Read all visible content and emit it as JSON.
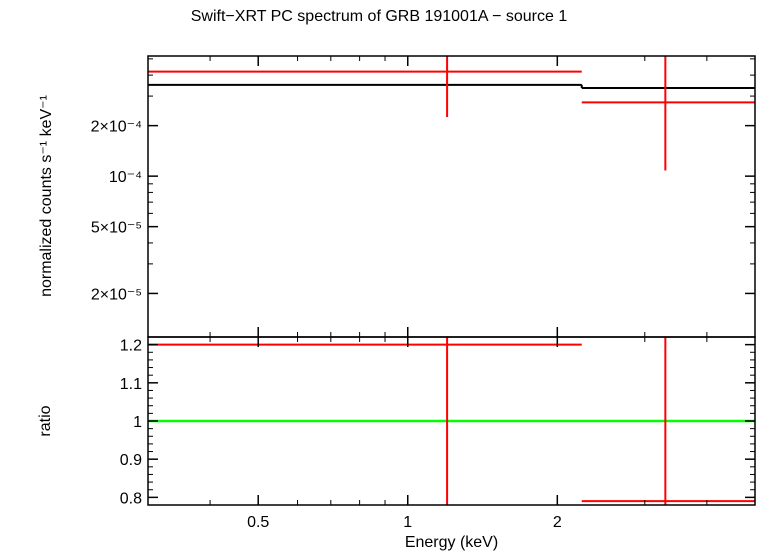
{
  "title": "Swift−XRT PC spectrum of GRB 191001A − source 1",
  "colors": {
    "data": "#ff0000",
    "model": "#000000",
    "ratio_ref": "#00ff00",
    "axes": "#000000"
  },
  "chart_data": [
    {
      "type": "scatter",
      "panel": "spectrum",
      "xlabel": "Energy (keV)",
      "ylabel": "normalized counts s⁻¹ keV⁻¹",
      "xscale": "log",
      "yscale": "log",
      "xlim": [
        0.3,
        5.0
      ],
      "ylim": [
        1.1e-05,
        0.00052
      ],
      "ytick_values": [
        2e-05,
        5e-05,
        0.0001,
        0.0002
      ],
      "ytick_labels": [
        "2×10⁻⁵",
        "5×10⁻⁵",
        "10⁻⁴",
        "2×10⁻⁴"
      ],
      "series": [
        {
          "type": "errorbar",
          "points": [
            {
              "x": 1.2,
              "xlo": 0.3,
              "xhi": 2.24,
              "y": 0.00042,
              "ylo": 0.000225,
              "yhi": 0.00052
            },
            {
              "x": 3.3,
              "xlo": 2.24,
              "xhi": 5.0,
              "y": 0.000275,
              "ylo": 0.000108,
              "yhi": 0.00052
            }
          ]
        },
        {
          "type": "step",
          "segments": [
            {
              "xlo": 0.3,
              "xhi": 2.24,
              "y": 0.00035
            },
            {
              "xlo": 2.24,
              "xhi": 5.0,
              "y": 0.000335
            }
          ]
        }
      ]
    },
    {
      "type": "scatter",
      "panel": "ratio",
      "xlabel": "Energy (keV)",
      "ylabel": "ratio",
      "xscale": "log",
      "xlim": [
        0.3,
        5.0
      ],
      "ylim": [
        0.78,
        1.22
      ],
      "ytick_values": [
        0.8,
        0.9,
        1.0,
        1.1,
        1.2
      ],
      "ytick_labels": [
        "0.8",
        "0.9",
        "1",
        "1.1",
        "1.2"
      ],
      "xtick_values": [
        0.5,
        1,
        2
      ],
      "xtick_labels": [
        "0.5",
        "1",
        "2"
      ],
      "reference_line": 1.0,
      "series": [
        {
          "type": "errorbar",
          "points": [
            {
              "x": 1.2,
              "xlo": 0.3,
              "xhi": 2.24,
              "y": 1.2,
              "ylo": 0.78,
              "yhi": 1.22
            },
            {
              "x": 3.3,
              "xlo": 2.24,
              "xhi": 5.0,
              "y": 0.79,
              "ylo": 0.78,
              "yhi": 1.22
            }
          ]
        }
      ]
    }
  ]
}
